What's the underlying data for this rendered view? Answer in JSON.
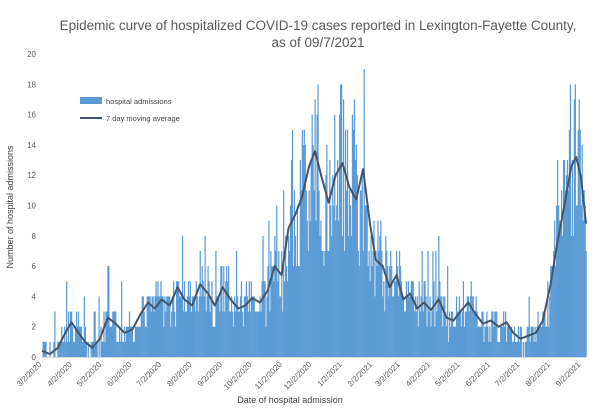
{
  "chart_data": {
    "type": "bar",
    "title": "Epidemic curve of hospitalized COVID-19 cases reported in Lexington-Fayette County,",
    "subtitle": "as of 09/7/2021",
    "xlabel": "Date of hospital admission",
    "ylabel": "Number of hospital admissions",
    "ylim": [
      0,
      20
    ],
    "yticks": [
      0,
      2,
      4,
      6,
      8,
      10,
      12,
      14,
      16,
      18,
      20
    ],
    "xlim": [
      "2020-03-02",
      "2021-09-07"
    ],
    "x_tick_dates": [
      "2020-03-02",
      "2020-04-02",
      "2020-05-02",
      "2020-06-02",
      "2020-07-02",
      "2020-08-02",
      "2020-09-02",
      "2020-10-02",
      "2020-11-02",
      "2020-12-02",
      "2021-01-02",
      "2021-02-02",
      "2021-03-02",
      "2021-04-02",
      "2021-05-02",
      "2021-06-02",
      "2021-07-02",
      "2021-08-02",
      "2021-09-02"
    ],
    "x_tick_labels": [
      "3/2/2020",
      "4/2/2020",
      "5/2/2020",
      "6/2/2020",
      "7/2/2020",
      "8/2/2020",
      "9/2/2020",
      "10/2/2020",
      "11/2/2020",
      "12/2/2020",
      "1/2/2021",
      "2/2/2021",
      "3/2/2021",
      "4/2/2021",
      "5/2/2021",
      "6/2/2021",
      "7/2/2021",
      "8/2/2021",
      "9/2/2021"
    ],
    "grid": false,
    "legend_position": "top-left",
    "series": [
      {
        "name": "hospital admissions",
        "type": "bar",
        "color": "#5b9bd5"
      },
      {
        "name": "7 day moving average",
        "type": "line",
        "color": "#44546a"
      }
    ],
    "moving_average": {
      "dates": [
        "2020-03-02",
        "2020-03-10",
        "2020-03-18",
        "2020-03-25",
        "2020-04-01",
        "2020-04-08",
        "2020-04-15",
        "2020-04-22",
        "2020-04-30",
        "2020-05-08",
        "2020-05-16",
        "2020-05-25",
        "2020-06-02",
        "2020-06-10",
        "2020-06-18",
        "2020-06-25",
        "2020-07-02",
        "2020-07-10",
        "2020-07-18",
        "2020-07-25",
        "2020-08-02",
        "2020-08-10",
        "2020-08-18",
        "2020-08-25",
        "2020-09-02",
        "2020-09-10",
        "2020-09-18",
        "2020-09-25",
        "2020-10-02",
        "2020-10-10",
        "2020-10-18",
        "2020-10-25",
        "2020-11-01",
        "2020-11-08",
        "2020-11-15",
        "2020-11-22",
        "2020-11-29",
        "2020-12-05",
        "2020-12-12",
        "2020-12-19",
        "2020-12-26",
        "2021-01-02",
        "2021-01-09",
        "2021-01-16",
        "2021-01-23",
        "2021-01-30",
        "2021-02-05",
        "2021-02-12",
        "2021-02-19",
        "2021-02-26",
        "2021-03-05",
        "2021-03-12",
        "2021-03-19",
        "2021-03-26",
        "2021-04-02",
        "2021-04-10",
        "2021-04-18",
        "2021-04-25",
        "2021-05-02",
        "2021-05-10",
        "2021-05-18",
        "2021-05-25",
        "2021-06-02",
        "2021-06-10",
        "2021-06-18",
        "2021-06-25",
        "2021-07-02",
        "2021-07-10",
        "2021-07-18",
        "2021-07-25",
        "2021-08-02",
        "2021-08-09",
        "2021-08-16",
        "2021-08-23",
        "2021-08-28",
        "2021-09-02",
        "2021-09-07"
      ],
      "values": [
        0.4,
        0.2,
        0.6,
        1.5,
        2.3,
        1.6,
        1.0,
        0.6,
        1.2,
        2.6,
        2.2,
        1.6,
        1.8,
        2.8,
        3.6,
        3.2,
        3.8,
        3.4,
        4.6,
        3.8,
        3.4,
        4.8,
        4.2,
        3.4,
        4.6,
        3.8,
        3.2,
        3.4,
        3.9,
        3.6,
        4.4,
        6.0,
        5.4,
        8.5,
        9.4,
        10.6,
        12.6,
        13.6,
        11.8,
        10.2,
        12.0,
        12.8,
        11.2,
        10.4,
        12.4,
        8.8,
        6.4,
        6.0,
        4.6,
        5.4,
        3.8,
        4.2,
        3.2,
        3.6,
        3.1,
        3.8,
        2.6,
        2.4,
        3.0,
        3.6,
        2.8,
        2.2,
        2.4,
        2.0,
        2.3,
        1.6,
        1.2,
        1.4,
        1.6,
        2.4,
        4.8,
        7.6,
        10.0,
        12.6,
        13.2,
        11.8,
        8.8
      ]
    }
  }
}
